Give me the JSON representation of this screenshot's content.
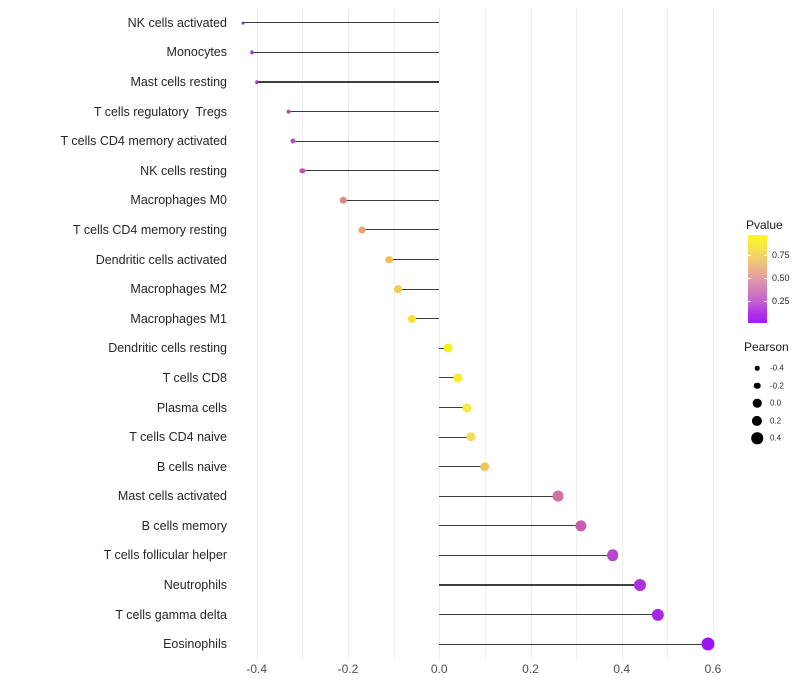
{
  "chart_data": {
    "type": "scatter",
    "variant": "lollipop",
    "title": "",
    "xlabel": "",
    "ylabel": "",
    "xlim": [
      -0.452,
      0.645
    ],
    "x_ticks": [
      -0.4,
      -0.2,
      0.0,
      0.2,
      0.4,
      0.6
    ],
    "x_tick_labels": [
      "-0.4",
      "-0.2",
      "0.0",
      "0.2",
      "0.4",
      "0.6"
    ],
    "x_minor_gridlines": [
      -0.3,
      -0.1,
      0.1,
      0.3,
      0.5
    ],
    "grid": "vertical gridlines only, light gray, white background",
    "stem_baseline_x": 0.0,
    "points": [
      {
        "label": "NK cells activated",
        "pearson": -0.43,
        "color": "#9131CB"
      },
      {
        "label": "Monocytes",
        "pearson": -0.41,
        "color": "#9733C9"
      },
      {
        "label": "Mast cells resting",
        "pearson": -0.4,
        "color": "#A23BC9"
      },
      {
        "label": "T cells regulatory  Tregs",
        "pearson": -0.33,
        "color": "#B845C6"
      },
      {
        "label": "T cells CD4 memory activated",
        "pearson": -0.32,
        "color": "#BF4CBF"
      },
      {
        "label": "NK cells resting",
        "pearson": -0.3,
        "color": "#C655B6"
      },
      {
        "label": "Macrophages M0",
        "pearson": -0.21,
        "color": "#DF8B8B"
      },
      {
        "label": "T cells CD4 memory resting",
        "pearson": -0.17,
        "color": "#E9A56C"
      },
      {
        "label": "Dendritic cells activated",
        "pearson": -0.11,
        "color": "#F0BE55"
      },
      {
        "label": "Macrophages M2",
        "pearson": -0.09,
        "color": "#F3CC4E"
      },
      {
        "label": "Macrophages M1",
        "pearson": -0.06,
        "color": "#F7E233"
      },
      {
        "label": "Dendritic cells resting",
        "pearson": 0.02,
        "color": "#FAF01D"
      },
      {
        "label": "T cells CD8",
        "pearson": 0.04,
        "color": "#F9EE25"
      },
      {
        "label": "Plasma cells",
        "pearson": 0.06,
        "color": "#F8E93F"
      },
      {
        "label": "T cells CD4 naive",
        "pearson": 0.07,
        "color": "#F6DC56"
      },
      {
        "label": "B cells naive",
        "pearson": 0.1,
        "color": "#F0C65F"
      },
      {
        "label": "Mast cells activated",
        "pearson": 0.26,
        "color": "#D1749F"
      },
      {
        "label": "B cells memory",
        "pearson": 0.31,
        "color": "#C75FB0"
      },
      {
        "label": "T cells follicular helper",
        "pearson": 0.38,
        "color": "#BA45CD"
      },
      {
        "label": "Neutrophils",
        "pearson": 0.44,
        "color": "#AC30DC"
      },
      {
        "label": "T cells gamma delta",
        "pearson": 0.48,
        "color": "#A528E5"
      },
      {
        "label": "Eosinophils",
        "pearson": 0.59,
        "color": "#9A16EC"
      }
    ],
    "legend": {
      "position": "right",
      "pvalue": {
        "title": "Pvalue",
        "tick_labels": [
          "0.75",
          "0.50",
          "0.25"
        ],
        "tick_values": [
          0.75,
          0.5,
          0.25
        ],
        "range": [
          0.0,
          1.0
        ],
        "gradient_top_color": "#FCF921",
        "gradient_mid_color": "#E09BA6",
        "gradient_bottom_color": "#A41EF5"
      },
      "pearson": {
        "title": "Pearson",
        "tick_labels": [
          "-0.4",
          "-0.2",
          "0.0",
          "0.2",
          "0.4"
        ],
        "tick_values": [
          -0.4,
          -0.2,
          0.0,
          0.2,
          0.4
        ],
        "dot_color": "#000000"
      }
    },
    "colors": {
      "stem": "#3d3d3d",
      "gridline": "#f0f0f0",
      "axis_text": "#4d4d4d",
      "label_text": "#262626",
      "background": "#ffffff"
    }
  }
}
